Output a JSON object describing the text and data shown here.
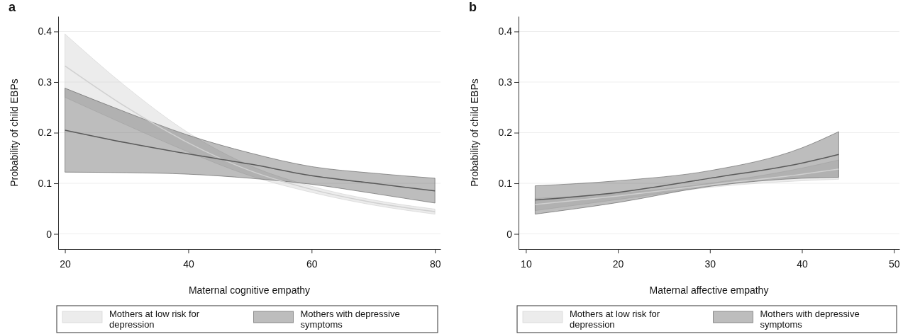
{
  "chart_data": [
    {
      "type": "line",
      "title": "a",
      "xlabel": "Maternal cognitive empathy",
      "ylabel": "Probability of child EBPs",
      "xlim": [
        18.9,
        80.9
      ],
      "xticks": [
        20,
        40,
        60,
        80
      ],
      "ylim": [
        -0.03,
        0.43
      ],
      "yticks": [
        0,
        0.1,
        0.2,
        0.3,
        0.4
      ],
      "grid": "y",
      "legend": "bottom",
      "x": [
        20,
        30,
        40,
        50,
        60,
        70,
        80
      ],
      "series": [
        {
          "name": "Mothers at low risk for depression",
          "color": "#d0d0d0",
          "values": [
            0.332,
            0.25,
            0.18,
            0.125,
            0.088,
            0.062,
            0.044
          ],
          "lower": [
            0.27,
            0.215,
            0.162,
            0.115,
            0.082,
            0.057,
            0.039
          ],
          "upper": [
            0.395,
            0.29,
            0.2,
            0.135,
            0.094,
            0.067,
            0.049
          ]
        },
        {
          "name": "Mothers with depressive symptoms",
          "color": "#5a5a5a",
          "values": [
            0.205,
            0.18,
            0.158,
            0.138,
            0.115,
            0.1,
            0.085
          ],
          "lower": [
            0.122,
            0.121,
            0.118,
            0.11,
            0.098,
            0.08,
            0.061
          ],
          "upper": [
            0.288,
            0.24,
            0.195,
            0.16,
            0.133,
            0.12,
            0.11
          ]
        }
      ]
    },
    {
      "type": "line",
      "title": "b",
      "xlabel": "Maternal affective empathy",
      "ylabel": "Probability of child EBPs",
      "xlim": [
        9.2,
        50.6
      ],
      "xticks": [
        10,
        20,
        30,
        40,
        50
      ],
      "ylim": [
        -0.03,
        0.43
      ],
      "yticks": [
        0,
        0.1,
        0.2,
        0.3,
        0.4
      ],
      "grid": "y",
      "legend": "bottom",
      "x": [
        11,
        20,
        30,
        40,
        44
      ],
      "series": [
        {
          "name": "Mothers at low risk for depression",
          "color": "#d0d0d0",
          "values": [
            0.058,
            0.075,
            0.097,
            0.118,
            0.128
          ],
          "lower": [
            0.046,
            0.068,
            0.092,
            0.105,
            0.108
          ],
          "upper": [
            0.07,
            0.08,
            0.1,
            0.13,
            0.146
          ]
        },
        {
          "name": "Mothers with depressive symptoms",
          "color": "#5a5a5a",
          "values": [
            0.067,
            0.082,
            0.11,
            0.14,
            0.157
          ],
          "lower": [
            0.039,
            0.062,
            0.094,
            0.11,
            0.112
          ],
          "upper": [
            0.095,
            0.105,
            0.125,
            0.17,
            0.202
          ]
        }
      ]
    }
  ]
}
